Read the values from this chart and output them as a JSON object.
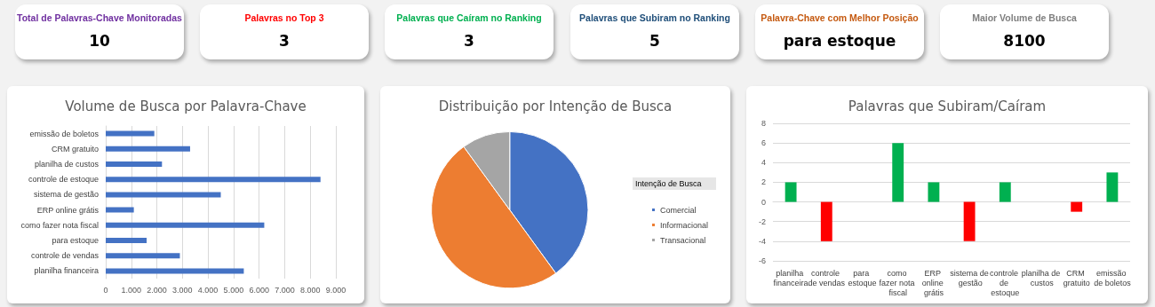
{
  "chart_data": [
    {
      "type": "other",
      "title": "Total de Palavras-Chave Monitoradas",
      "color": "#7030a0",
      "annotations": [
        "10"
      ]
    },
    {
      "type": "other",
      "title": "Palavras no Top 3",
      "color": "#ff0000",
      "annotations": [
        "3"
      ]
    },
    {
      "type": "other",
      "title": "Palavras que Caíram no Ranking",
      "color": "#00b050",
      "annotations": [
        "3"
      ]
    },
    {
      "type": "other",
      "title": "Palavras que Subiram no Ranking",
      "color": "#1f4e79",
      "annotations": [
        "5"
      ]
    },
    {
      "type": "other",
      "title": "Palavra-Chave com Melhor Posição",
      "color": "#c55a11",
      "annotations": [
        "para estoque"
      ]
    },
    {
      "type": "other",
      "title": "Maior Volume de Busca",
      "color": "#7f7f7f",
      "annotations": [
        "8100"
      ]
    },
    {
      "type": "bar",
      "title": "Volume de Busca por Palavra-Chave",
      "orientation": "horizontal",
      "categories": [
        "emissão de boletos",
        "CRM gratuito",
        "planilha de custos",
        "controle de estoque",
        "sistema de gestão",
        "ERP online grátis",
        "como fazer nota fiscal",
        "para estoque",
        "controle de vendas",
        "planilha financeira"
      ],
      "values": [
        1900,
        3300,
        2200,
        8400,
        4500,
        1100,
        6200,
        1600,
        2900,
        5400
      ],
      "color": "#4472c4",
      "xlim": [
        0,
        9000
      ],
      "xticks": [
        0,
        {
          "value": 1000,
          "label": "1.000"
        },
        {
          "value": 2000,
          "label": "2.000"
        },
        {
          "value": 3000,
          "label": "3.000"
        },
        {
          "value": 4000,
          "label": "4.000"
        },
        {
          "value": 5000,
          "label": "5.000"
        },
        {
          "value": 6000,
          "label": "6.000"
        },
        {
          "value": 7000,
          "label": "7.000"
        },
        {
          "value": 8000,
          "label": "8.000"
        },
        {
          "value": 9000,
          "label": "9.000"
        }
      ],
      "grid": "x"
    },
    {
      "type": "pie",
      "title": "Distribuição por Intenção de Busca",
      "legend_title": "Intenção de Busca",
      "legend": "right",
      "categories": [
        "Comercial",
        "Informacional",
        "Transacional"
      ],
      "values": [
        40,
        50,
        10
      ],
      "colors": [
        "#4472c4",
        "#ed7d31",
        "#a5a5a5"
      ]
    },
    {
      "type": "bar",
      "title": "Palavras que Subiram/Caíram",
      "categories": [
        "planilha financeira",
        "controle de vendas",
        "para estoque",
        "como fazer nota fiscal",
        "ERP online grátis",
        "sistema de gestão",
        "controle de estoque",
        "planilha de custos",
        "CRM gratuito",
        "emissão de boletos"
      ],
      "values": [
        2,
        -4,
        0,
        6,
        2,
        -4,
        2,
        0,
        -1,
        3
      ],
      "colors": [
        "#00b050",
        "#ff0000",
        "#00b050",
        "#00b050",
        "#00b050",
        "#ff0000",
        "#00b050",
        "#00b050",
        "#ff0000",
        "#00b050"
      ],
      "ylim": [
        -6,
        8
      ],
      "yticks": [
        -6,
        -4,
        -2,
        0,
        2,
        4,
        6,
        8
      ],
      "grid": "y"
    }
  ]
}
